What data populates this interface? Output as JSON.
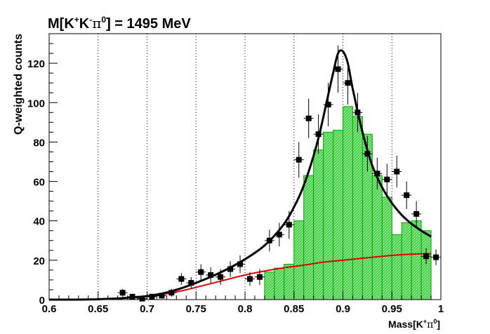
{
  "chart_data": {
    "type": "histogram",
    "title_main": "M[K",
    "title_sup1": "+",
    "title_k2": "K",
    "title_sup2": "-",
    "title_pi": "π",
    "title_sup3": "0",
    "title_tail": "] = 1495 MeV",
    "ylabel": "Q-weighted counts",
    "xlabel_main": "Mass[K",
    "xlabel_sup1": "+",
    "xlabel_pi": "π",
    "xlabel_sup2": "0",
    "xlabel_tail": "]",
    "xlim": [
      0.6,
      1.0
    ],
    "ylim": [
      0,
      135
    ],
    "x_ticks": [
      0.6,
      0.65,
      0.7,
      0.75,
      0.8,
      0.85,
      0.9,
      0.95,
      1.0
    ],
    "x_tick_labels": [
      "0.6",
      "0.65",
      "0.7",
      "0.75",
      "0.8",
      "0.85",
      "0.9",
      "0.95",
      "1"
    ],
    "y_ticks": [
      0,
      20,
      40,
      60,
      80,
      100,
      120
    ],
    "y_tick_labels": [
      "0",
      "20",
      "40",
      "60",
      "80",
      "100",
      "120"
    ],
    "vertical_dotted_lines": [
      0.65,
      0.7,
      0.75,
      0.8,
      0.85,
      0.9,
      0.95
    ],
    "bin_width": 0.01,
    "data_points": [
      {
        "x": 0.675,
        "y": 3.5,
        "err": 2.0
      },
      {
        "x": 0.685,
        "y": 1.5,
        "err": 1.2
      },
      {
        "x": 0.695,
        "y": 0.5,
        "err": 1.0
      },
      {
        "x": 0.705,
        "y": 1.5,
        "err": 1.5
      },
      {
        "x": 0.715,
        "y": 2.0,
        "err": 1.5
      },
      {
        "x": 0.725,
        "y": 3.5,
        "err": 2.0
      },
      {
        "x": 0.735,
        "y": 10.5,
        "err": 3.0
      },
      {
        "x": 0.745,
        "y": 8.5,
        "err": 3.0
      },
      {
        "x": 0.755,
        "y": 14.0,
        "err": 4.0
      },
      {
        "x": 0.765,
        "y": 12.5,
        "err": 4.0
      },
      {
        "x": 0.775,
        "y": 11.5,
        "err": 4.0
      },
      {
        "x": 0.785,
        "y": 15.5,
        "err": 4.0
      },
      {
        "x": 0.795,
        "y": 18.0,
        "err": 4.5
      },
      {
        "x": 0.805,
        "y": 10.5,
        "err": 3.5
      },
      {
        "x": 0.815,
        "y": 11.5,
        "err": 4.0
      },
      {
        "x": 0.825,
        "y": 30.0,
        "err": 5.5
      },
      {
        "x": 0.835,
        "y": 33.0,
        "err": 6.0
      },
      {
        "x": 0.845,
        "y": 38.0,
        "err": 7.0
      },
      {
        "x": 0.855,
        "y": 71.0,
        "err": 9.0
      },
      {
        "x": 0.865,
        "y": 92.0,
        "err": 10.0
      },
      {
        "x": 0.875,
        "y": 84.0,
        "err": 10.0
      },
      {
        "x": 0.885,
        "y": 99.0,
        "err": 11.0
      },
      {
        "x": 0.895,
        "y": 117.0,
        "err": 12.0
      },
      {
        "x": 0.905,
        "y": 110.0,
        "err": 11.0
      },
      {
        "x": 0.915,
        "y": 95.0,
        "err": 10.0
      },
      {
        "x": 0.925,
        "y": 74.0,
        "err": 9.0
      },
      {
        "x": 0.935,
        "y": 64.0,
        "err": 8.0
      },
      {
        "x": 0.945,
        "y": 61.0,
        "err": 8.0
      },
      {
        "x": 0.955,
        "y": 65.0,
        "err": 8.0
      },
      {
        "x": 0.965,
        "y": 53.0,
        "err": 7.0
      },
      {
        "x": 0.975,
        "y": 43.5,
        "err": 6.5
      },
      {
        "x": 0.985,
        "y": 22.0,
        "err": 4.0
      },
      {
        "x": 0.995,
        "y": 21.5,
        "err": 4.0
      }
    ],
    "green_hist": {
      "x_start": 0.82,
      "values": [
        14,
        16,
        18,
        40,
        63,
        76,
        85,
        86,
        98,
        93,
        84,
        63,
        52,
        33,
        39,
        40,
        35
      ],
      "color": "#22cc22",
      "line_color": "#00aa00"
    },
    "total_fit": {
      "x": [
        0.6,
        0.65,
        0.7,
        0.73,
        0.76,
        0.78,
        0.8,
        0.82,
        0.84,
        0.855,
        0.865,
        0.875,
        0.885,
        0.89,
        0.895,
        0.9,
        0.905,
        0.91,
        0.92,
        0.93,
        0.94,
        0.95,
        0.96,
        0.97,
        0.98,
        0.99
      ],
      "y": [
        0,
        0.2,
        1.8,
        5.0,
        10.5,
        15.0,
        20.5,
        27.5,
        38.5,
        52.0,
        65.0,
        82.0,
        104.0,
        115.0,
        125.0,
        126.0,
        120.0,
        107.0,
        85.0,
        68.0,
        57.0,
        49.0,
        43.0,
        38.5,
        35.0,
        32.0
      ],
      "color": "#000000"
    },
    "background_fit": {
      "x": [
        0.6,
        0.65,
        0.7,
        0.72,
        0.74,
        0.76,
        0.78,
        0.8,
        0.82,
        0.84,
        0.86,
        0.88,
        0.9,
        0.92,
        0.94,
        0.96,
        0.98,
        0.99
      ],
      "y": [
        0,
        0.2,
        1.5,
        3.0,
        5.0,
        7.5,
        10.0,
        12.5,
        14.5,
        16.2,
        17.5,
        19.0,
        20.0,
        21.0,
        22.0,
        22.8,
        23.3,
        23.3
      ],
      "color": "#dd0000"
    }
  }
}
